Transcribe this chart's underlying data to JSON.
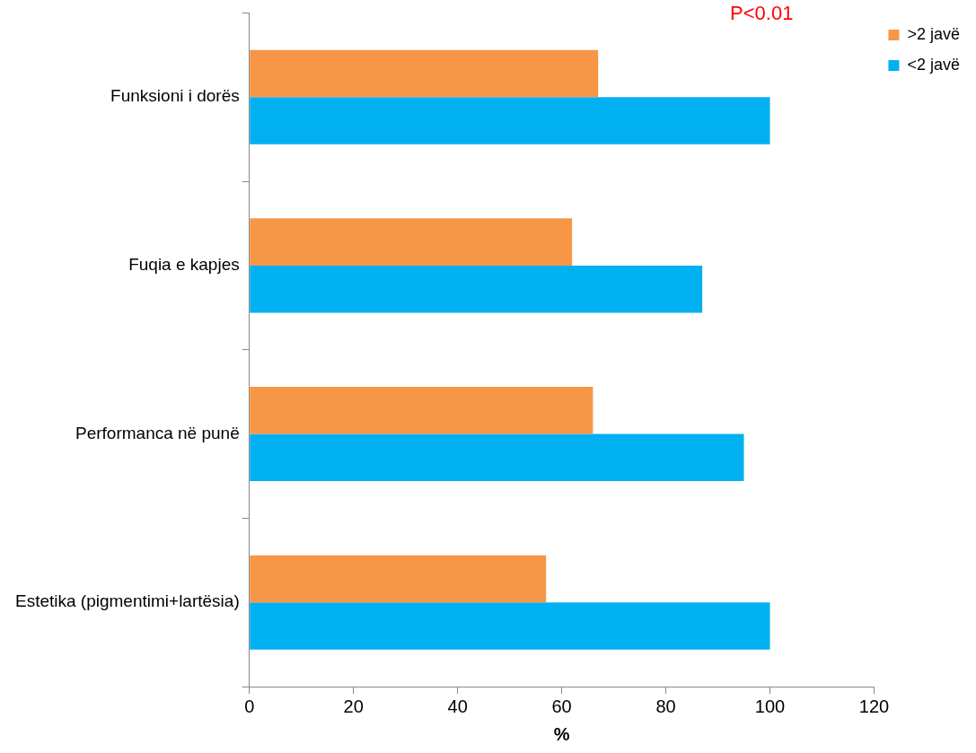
{
  "chart_data": {
    "type": "bar",
    "orientation": "horizontal",
    "categories": [
      "Funksioni i dorës",
      "Fuqia e kapjes",
      "Performanca në punë",
      "Estetika (pigmentimi+lartësia)"
    ],
    "series": [
      {
        "name": ">2 javë",
        "color": "#f79646",
        "values": [
          67,
          62,
          66,
          57
        ]
      },
      {
        "name": "<2 javë",
        "color": "#00b0f0",
        "values": [
          100,
          87,
          95,
          100
        ]
      }
    ],
    "xlim": [
      0,
      120
    ],
    "xticks": [
      0,
      20,
      40,
      60,
      80,
      100,
      120
    ],
    "xlabel": "%",
    "grid": false,
    "legend": "right",
    "annotations": [
      "P<0.01"
    ]
  }
}
